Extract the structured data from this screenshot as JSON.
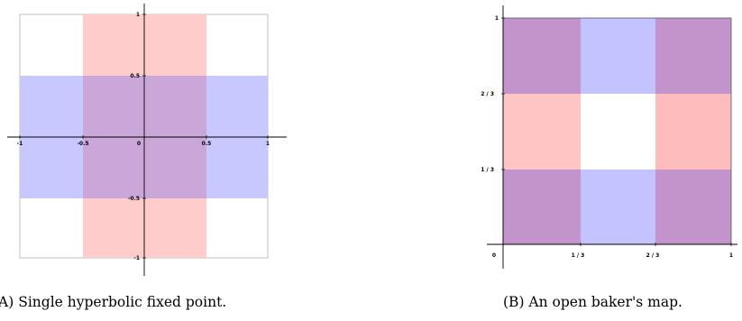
{
  "colors": {
    "red_region": "#ffb3b3",
    "blue_region": "#b3b3ff",
    "overlap_region": "#c39bd3",
    "axis": "#000000",
    "frame": "#b0b0b0"
  },
  "left_panel": {
    "tick_labels_x": [
      "-1",
      "-0.5",
      "0",
      "0.5",
      "1"
    ],
    "tick_labels_y": [
      "1",
      "0.5",
      "-0.5",
      "-1"
    ],
    "caption": "(A) Single hyperbolic fixed point."
  },
  "right_panel": {
    "tick_labels_x": [
      "0",
      "1 / 3",
      "2 / 3",
      "1"
    ],
    "tick_labels_y": [
      "1",
      "2 / 3",
      "1 / 3"
    ],
    "caption": "(B) An open baker's map."
  }
}
